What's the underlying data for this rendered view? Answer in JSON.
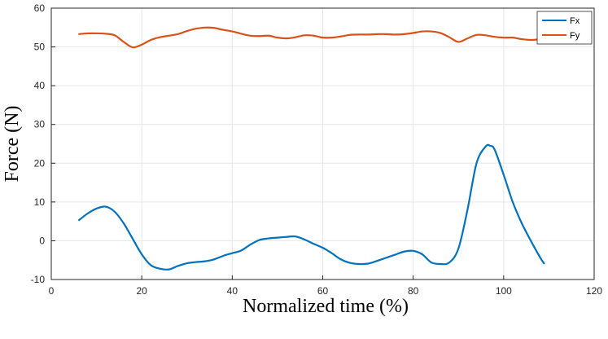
{
  "chart_data": {
    "type": "line",
    "xlabel": "Normalized time (%)",
    "ylabel": "Force (N)",
    "xlim": [
      0,
      120
    ],
    "ylim": [
      -10,
      60
    ],
    "x_ticks": [
      0,
      20,
      40,
      60,
      80,
      100,
      120
    ],
    "y_ticks": [
      -10,
      0,
      10,
      20,
      30,
      40,
      50,
      60
    ],
    "grid": true,
    "legend_position": "top-right",
    "series": [
      {
        "name": "Fx",
        "color": "#0072BD",
        "x": [
          6,
          8,
          10,
          12,
          14,
          16,
          18,
          20,
          22,
          24,
          26,
          28,
          30,
          32,
          34,
          36,
          38,
          40,
          42,
          44,
          46,
          48,
          50,
          52,
          54,
          56,
          58,
          60,
          62,
          64,
          66,
          68,
          70,
          72,
          74,
          76,
          78,
          80,
          82,
          84,
          86,
          88,
          90,
          92,
          94,
          96,
          97,
          98,
          100,
          102,
          104,
          106,
          108,
          109
        ],
        "y": [
          5.2,
          7.0,
          8.3,
          8.8,
          7.5,
          4.5,
          0.5,
          -3.5,
          -6.3,
          -7.2,
          -7.4,
          -6.5,
          -5.8,
          -5.5,
          -5.3,
          -4.8,
          -3.9,
          -3.2,
          -2.5,
          -1.0,
          0.2,
          0.6,
          0.8,
          1.0,
          1.1,
          0.3,
          -0.8,
          -1.8,
          -3.2,
          -4.8,
          -5.7,
          -6.0,
          -5.9,
          -5.2,
          -4.4,
          -3.6,
          -2.8,
          -2.6,
          -3.5,
          -5.6,
          -6.0,
          -5.6,
          -2.0,
          8.0,
          20.0,
          24.3,
          24.5,
          23.5,
          17.0,
          10.0,
          4.5,
          0.0,
          -4.2,
          -6.0
        ]
      },
      {
        "name": "Fy",
        "color": "#D95319",
        "x": [
          6,
          8,
          10,
          12,
          14,
          16,
          18,
          20,
          22,
          24,
          26,
          28,
          30,
          32,
          34,
          36,
          38,
          40,
          42,
          44,
          46,
          48,
          50,
          52,
          54,
          56,
          58,
          60,
          62,
          64,
          66,
          68,
          70,
          72,
          74,
          76,
          78,
          80,
          82,
          84,
          86,
          88,
          90,
          92,
          94,
          96,
          98,
          100,
          102,
          104,
          106,
          108,
          109
        ],
        "y": [
          53.3,
          53.5,
          53.5,
          53.4,
          53.0,
          51.3,
          49.9,
          50.6,
          51.8,
          52.5,
          52.9,
          53.3,
          54.1,
          54.7,
          55.0,
          54.9,
          54.4,
          54.0,
          53.4,
          52.9,
          52.8,
          52.9,
          52.4,
          52.2,
          52.5,
          53.0,
          52.9,
          52.4,
          52.4,
          52.7,
          53.1,
          53.2,
          53.2,
          53.3,
          53.3,
          53.2,
          53.3,
          53.6,
          54.0,
          54.0,
          53.6,
          52.5,
          51.3,
          52.2,
          53.1,
          53.0,
          52.6,
          52.4,
          52.4,
          52.0,
          51.8,
          52.0,
          52.2
        ]
      }
    ]
  }
}
